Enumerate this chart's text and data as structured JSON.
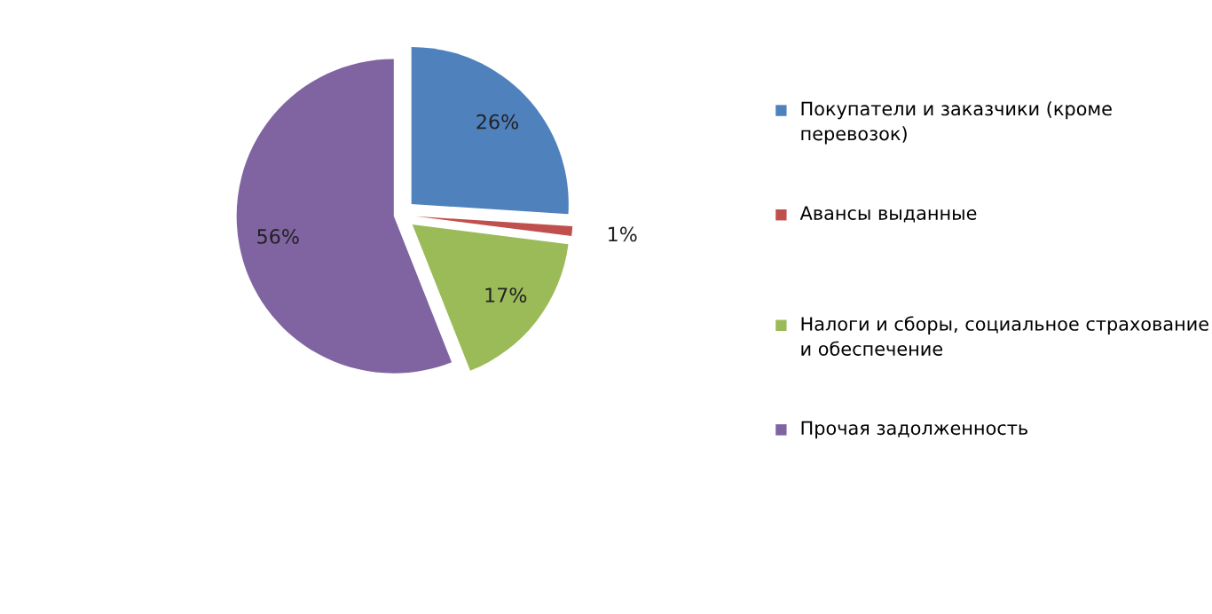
{
  "chart_data": {
    "type": "pie",
    "categories": [
      "Покупатели и заказчики (кроме перевозок)",
      "Авансы выданные",
      "Налоги и сборы, социальное страхование и обеспечение",
      "Прочая задолженность"
    ],
    "values": [
      26,
      1,
      17,
      56
    ],
    "colors": [
      "#4f81bd",
      "#c0504d",
      "#9bbb59",
      "#8064a2"
    ],
    "value_labels": [
      "26%",
      "1%",
      "17%",
      "56%"
    ],
    "legend": "right"
  }
}
